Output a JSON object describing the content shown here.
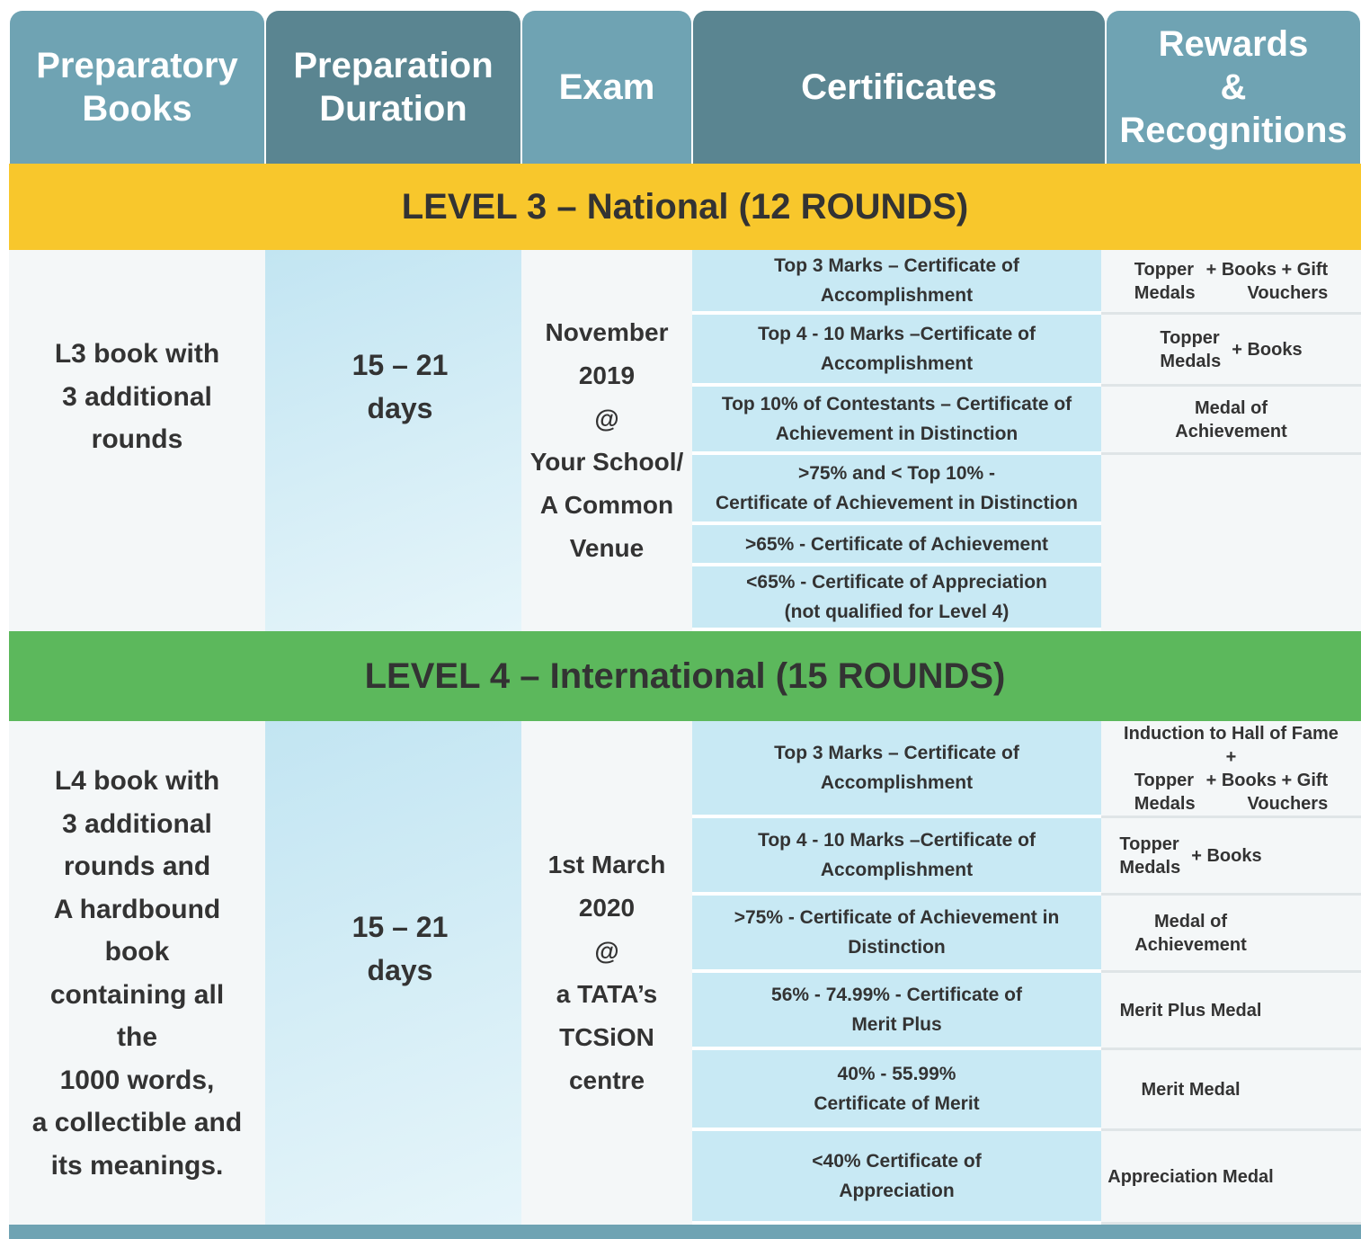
{
  "header": {
    "columns": [
      [
        "Preparatory",
        "Books"
      ],
      [
        "Preparation",
        "Duration"
      ],
      [
        "Exam"
      ],
      [
        "Certificates"
      ],
      [
        "Rewards",
        "&",
        "Recognitions"
      ]
    ]
  },
  "levels": [
    {
      "title": "LEVEL 3 – National (12 ROUNDS)",
      "book": [
        "L3 book with",
        "3 additional",
        "rounds"
      ],
      "duration": [
        "15 – 21",
        "days"
      ],
      "exam": [
        "November",
        "2019",
        "@",
        "Your School/",
        "A Common",
        "Venue"
      ],
      "certificates": [
        [
          "Top 3 Marks – Certificate of",
          "Accomplishment"
        ],
        [
          "Top 4 - 10 Marks –Certificate of",
          "Accomplishment"
        ],
        [
          "Top 10% of Contestants – Certificate of",
          "Achievement in Distinction"
        ],
        [
          ">75% and < Top 10% -",
          "Certificate of Achievement in Distinction"
        ],
        [
          ">65% - Certificate of Achievement"
        ],
        [
          "<65% - Certificate of Appreciation",
          "(not qualified for Level 4)"
        ]
      ],
      "rewards": [
        {
          "medal": [
            "Topper",
            "Medals"
          ],
          "extra": [
            "+ Books + Gift",
            "Vouchers"
          ]
        },
        {
          "medal": [
            "Topper",
            "Medals"
          ],
          "extra": [
            "+ Books"
          ]
        },
        {
          "medal": [
            "Medal of",
            "Achievement"
          ]
        }
      ]
    },
    {
      "title": "LEVEL 4 – International (15 ROUNDS)",
      "book": [
        "L4 book with",
        "3 additional",
        "rounds and",
        "A hardbound",
        "book",
        "containing all",
        "the",
        "1000 words,",
        "a collectible and",
        "its meanings."
      ],
      "duration": [
        "15 – 21",
        "days"
      ],
      "exam": [
        "1st March",
        "2020",
        "@",
        "a TATA’s",
        "TCSiON",
        "centre"
      ],
      "certificates": [
        [
          "Top 3 Marks – Certificate of",
          "Accomplishment"
        ],
        [
          "Top 4 - 10 Marks –Certificate of",
          "Accomplishment"
        ],
        [
          ">75% - Certificate of Achievement in",
          "Distinction"
        ],
        [
          "56% - 74.99% - Certificate of",
          "Merit Plus"
        ],
        [
          "40% - 55.99%",
          "Certificate of Merit"
        ],
        [
          "<40% Certificate of",
          "Appreciation"
        ]
      ],
      "rewards": [
        {
          "heading": [
            "Induction to Hall of Fame",
            "+"
          ],
          "medal": [
            "Topper",
            "Medals"
          ],
          "extra": [
            "+ Books + Gift",
            "Vouchers"
          ]
        },
        {
          "medal": [
            "Topper",
            "Medals"
          ],
          "extra": [
            "+ Books"
          ]
        },
        {
          "medal": [
            "Medal of",
            "Achievement"
          ]
        },
        {
          "medal": [
            "Merit Plus Medal"
          ]
        },
        {
          "medal": [
            "Merit Medal"
          ]
        },
        {
          "medal": [
            "Appreciation Medal"
          ]
        }
      ]
    }
  ]
}
